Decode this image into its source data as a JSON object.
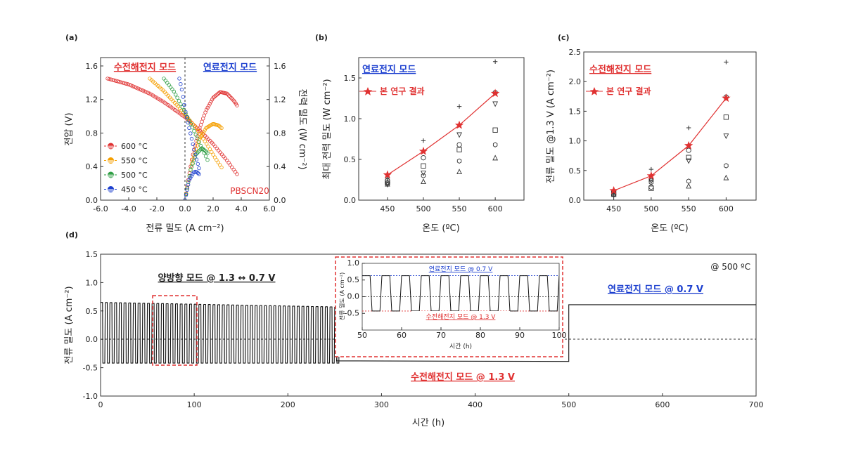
{
  "chart_data": [
    {
      "panel": "(a)",
      "type": "scatter",
      "xlabel": "전류 밀도 (A cm⁻²)",
      "ylabel": "전압 (V)",
      "y2label": "전력 밀도 (W cm⁻²)",
      "xlim": [
        -6.0,
        6.0
      ],
      "ylim": [
        0.0,
        1.7
      ],
      "y2lim": [
        0.0,
        1.7
      ],
      "xticks": [
        "-6.0",
        "-4.0",
        "-2.0",
        "0.0",
        "2.0",
        "4.0",
        "6.0"
      ],
      "yticks": [
        "0.0",
        "0.4",
        "0.8",
        "1.2",
        "1.6"
      ],
      "y2ticks": [
        "0.0",
        "0.4",
        "0.8",
        "1.2",
        "1.6"
      ],
      "annotations": {
        "electrolysis": "수전해전지 모드",
        "fuelcell": "연료전지 모드",
        "sample": "PBSCN20"
      },
      "series": [
        {
          "name": "600 °C",
          "color": "#e03131",
          "iv": [
            [
              -5.5,
              1.45
            ],
            [
              -4.0,
              1.38
            ],
            [
              -2.5,
              1.27
            ],
            [
              -1.5,
              1.17
            ],
            [
              0.0,
              0.99
            ],
            [
              1.0,
              0.84
            ],
            [
              2.0,
              0.67
            ],
            [
              3.0,
              0.47
            ],
            [
              3.7,
              0.31
            ]
          ],
          "power": [
            [
              0.0,
              0.0
            ],
            [
              0.5,
              0.5
            ],
            [
              1.0,
              0.84
            ],
            [
              1.5,
              1.07
            ],
            [
              2.0,
              1.22
            ],
            [
              2.5,
              1.29
            ],
            [
              3.0,
              1.27
            ],
            [
              3.5,
              1.18
            ],
            [
              3.7,
              1.13
            ]
          ]
        },
        {
          "name": "550 °C",
          "color": "#f59f00",
          "iv": [
            [
              -2.5,
              1.45
            ],
            [
              -1.5,
              1.3
            ],
            [
              -0.5,
              1.12
            ],
            [
              0.0,
              1.02
            ],
            [
              0.8,
              0.86
            ],
            [
              1.5,
              0.68
            ],
            [
              2.2,
              0.49
            ],
            [
              2.6,
              0.39
            ]
          ],
          "power": [
            [
              0.0,
              0.0
            ],
            [
              0.5,
              0.46
            ],
            [
              1.0,
              0.72
            ],
            [
              1.5,
              0.86
            ],
            [
              2.0,
              0.91
            ],
            [
              2.4,
              0.89
            ],
            [
              2.6,
              0.86
            ]
          ]
        },
        {
          "name": "500 °C",
          "color": "#2f9e44",
          "iv": [
            [
              -1.5,
              1.45
            ],
            [
              -0.8,
              1.3
            ],
            [
              0.0,
              1.05
            ],
            [
              0.6,
              0.84
            ],
            [
              1.2,
              0.62
            ],
            [
              1.6,
              0.48
            ]
          ],
          "power": [
            [
              0.0,
              0.0
            ],
            [
              0.4,
              0.36
            ],
            [
              0.8,
              0.55
            ],
            [
              1.2,
              0.62
            ],
            [
              1.5,
              0.58
            ],
            [
              1.6,
              0.56
            ]
          ]
        },
        {
          "name": "450 °C",
          "color": "#1c3fcf",
          "iv": [
            [
              -0.4,
              1.45
            ],
            [
              -0.2,
              1.3
            ],
            [
              0.0,
              1.08
            ],
            [
              0.3,
              0.86
            ],
            [
              0.6,
              0.64
            ],
            [
              0.8,
              0.5
            ],
            [
              1.0,
              0.38
            ]
          ],
          "power": [
            [
              0.0,
              0.0
            ],
            [
              0.3,
              0.24
            ],
            [
              0.6,
              0.33
            ],
            [
              0.8,
              0.34
            ],
            [
              1.0,
              0.31
            ]
          ]
        }
      ]
    },
    {
      "panel": "(b)",
      "type": "scatter",
      "xlabel": "온도 (ºC)",
      "ylabel": "최대 전력 밀도 (W cm⁻²)",
      "categories": [
        450,
        500,
        550,
        600
      ],
      "ylim": [
        0.0,
        1.75
      ],
      "xticks": [
        "450",
        "500",
        "550",
        "600"
      ],
      "yticks": [
        "0.0",
        "0.5",
        "1.0",
        "1.5"
      ],
      "annotations": {
        "mode": "연료전지 모드"
      },
      "series": [
        {
          "name": "본 연구 결과",
          "color": "#e03131",
          "marker": "star",
          "values": [
            0.31,
            0.6,
            0.92,
            1.31
          ]
        },
        {
          "marker": "plus",
          "values": [
            0.27,
            0.73,
            1.15,
            1.7
          ]
        },
        {
          "marker": "circle",
          "values": [
            0.24,
            0.52,
            0.68,
            1.32
          ]
        },
        {
          "marker": "square",
          "values": [
            0.22,
            0.42,
            0.62,
            0.86
          ]
        },
        {
          "marker": "triangle-down",
          "values": [
            0.19,
            0.33,
            0.8,
            1.18
          ]
        },
        {
          "marker": "hexagon",
          "values": [
            0.21,
            0.3,
            0.48,
            0.68
          ]
        },
        {
          "marker": "triangle-up",
          "values": [
            0.2,
            0.23,
            0.35,
            0.52
          ]
        }
      ]
    },
    {
      "panel": "(c)",
      "type": "scatter",
      "xlabel": "온도 (ºC)",
      "ylabel": "전류 밀도 @1.3 V (A cm⁻²)",
      "categories": [
        450,
        500,
        550,
        600
      ],
      "ylim": [
        0.0,
        2.5
      ],
      "xticks": [
        "450",
        "500",
        "550",
        "600"
      ],
      "yticks": [
        "0.0",
        "0.5",
        "1.0",
        "1.5",
        "2.0",
        "2.5"
      ],
      "annotations": {
        "mode": "수전해전지 모드"
      },
      "series": [
        {
          "name": "본 연구 결과",
          "color": "#e03131",
          "marker": "star",
          "values": [
            0.16,
            0.41,
            0.92,
            1.72
          ]
        },
        {
          "marker": "plus",
          "values": [
            0.12,
            0.52,
            1.22,
            2.33
          ]
        },
        {
          "marker": "circle",
          "values": [
            0.1,
            0.22,
            0.84,
            1.74
          ]
        },
        {
          "marker": "triangle-down",
          "values": [
            0.12,
            0.32,
            0.66,
            1.08
          ]
        },
        {
          "marker": "square",
          "values": [
            0.11,
            0.2,
            0.72,
            1.4
          ]
        },
        {
          "marker": "hexagon",
          "values": [
            0.09,
            0.3,
            0.32,
            0.58
          ]
        },
        {
          "marker": "triangle-up",
          "values": [
            0.1,
            0.36,
            0.24,
            0.38
          ]
        }
      ]
    },
    {
      "panel": "(d)",
      "type": "line",
      "xlabel": "시간 (h)",
      "ylabel": "전류 밀도 (A cm⁻²)",
      "xlim": [
        0,
        700
      ],
      "ylim": [
        -1.0,
        1.5
      ],
      "xticks": [
        "0",
        "100",
        "200",
        "300",
        "400",
        "500",
        "600",
        "700"
      ],
      "yticks": [
        "-1.0",
        "-0.5",
        "0.0",
        "0.5",
        "1.0",
        "1.5"
      ],
      "annotations": {
        "temperature": "@ 500 ºC",
        "reversible": "양방향 모드 @ 1.3 ↔ 0.7 V",
        "fuelcell": "연료전지 모드 @ 0.7 V",
        "electrolysis": "수전해전지 모드 @ 1.3 V"
      },
      "segments": [
        {
          "mode": "cycling",
          "x_range": [
            0,
            252
          ],
          "high": 0.65,
          "low": -0.42,
          "high_end": 0.57,
          "low_end": -0.42,
          "period_h": 5
        },
        {
          "mode": "electrolysis",
          "x_range": [
            252,
            500
          ],
          "value": -0.38
        },
        {
          "mode": "fuel cell",
          "x_range": [
            500,
            700
          ],
          "value": 0.61
        }
      ],
      "inset": {
        "xlabel": "시간 (h)",
        "ylabel": "전류 밀도 (A cm⁻²)",
        "xlim": [
          50,
          100
        ],
        "ylim": [
          -1.0,
          1.0
        ],
        "xticks": [
          "50",
          "60",
          "70",
          "80",
          "90",
          "100"
        ],
        "yticks": [
          "-0.5",
          "0.0",
          "0.5",
          "1.0"
        ],
        "high": 0.63,
        "low": -0.43,
        "period_h": 5,
        "labels": {
          "fuelcell": "연료전지 모드 @ 0.7 V",
          "electrolysis": "수전해전지 모드 @ 1.3 V"
        }
      }
    }
  ]
}
